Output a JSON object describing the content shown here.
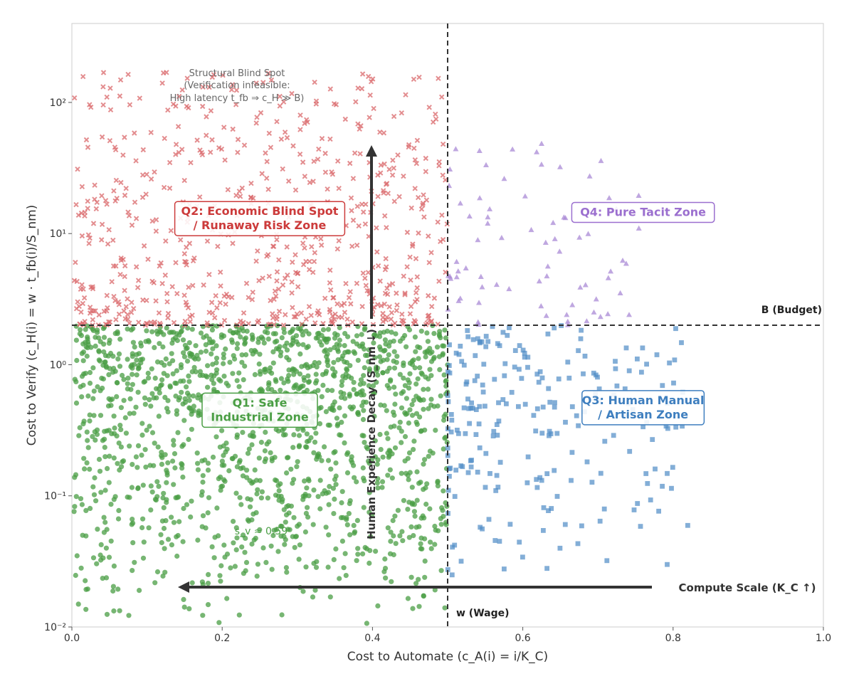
{
  "chart_data": {
    "type": "scatter",
    "title": "",
    "xlabel": "Cost to Automate (c_A(i) = i/K_C)",
    "ylabel": "Cost to Verify (c_H(i) = w · t_fb(i)/S_nm)",
    "xlim": [
      0.0,
      1.0
    ],
    "ylim": [
      0.01,
      400
    ],
    "yscale": "log",
    "grid": false,
    "x_ticks": [
      0.0,
      0.2,
      0.4,
      0.6,
      0.8,
      1.0
    ],
    "x_tick_labels": [
      "0.0",
      "0.2",
      "0.4",
      "0.6",
      "0.8",
      "1.0"
    ],
    "y_ticks": [
      0.01,
      0.1,
      1,
      10,
      100
    ],
    "y_tick_labels": [
      "10⁻²",
      "10⁻¹",
      "10⁰",
      "10¹",
      "10²"
    ],
    "threshold_wage": 0.5,
    "threshold_budget": 2.0,
    "threshold_wage_label": "w (Wage)",
    "threshold_budget_label": "B (Budget)",
    "series": [
      {
        "name": "Q1",
        "marker": "circle",
        "color": "#4a9e44",
        "count": 1500,
        "x_range": [
          0.0,
          0.5
        ],
        "y_range": [
          0.01,
          2.0
        ]
      },
      {
        "name": "Q2",
        "marker": "x",
        "color": "#d9676a",
        "count": 650,
        "x_range": [
          0.0,
          0.5
        ],
        "y_range": [
          2.0,
          170
        ]
      },
      {
        "name": "Q3",
        "marker": "square",
        "color": "#4f8cc6",
        "count": 230,
        "x_range": [
          0.5,
          0.82
        ],
        "y_range": [
          0.02,
          2.0
        ]
      },
      {
        "name": "Q4",
        "marker": "triangle",
        "color": "#a989d6",
        "count": 75,
        "x_range": [
          0.5,
          0.76
        ],
        "y_range": [
          2.0,
          50
        ]
      }
    ],
    "quadrant_labels": [
      {
        "id": "q1",
        "lines": [
          "Q1: Safe",
          "Industrial Zone"
        ],
        "color": "#4a9e44",
        "x": 0.25,
        "y": 0.45
      },
      {
        "id": "q2",
        "lines": [
          "Q2: Economic Blind Spot",
          "/ Runaway Risk Zone"
        ],
        "color": "#cc3b3b",
        "x": 0.25,
        "y": 13
      },
      {
        "id": "q3",
        "lines": [
          "Q3: Human Manual",
          "/ Artisan Zone"
        ],
        "color": "#3f7fbf",
        "x": 0.76,
        "y": 0.47
      },
      {
        "id": "q4",
        "lines": [
          "Q4: Pure Tacit Zone"
        ],
        "color": "#9b6fcf",
        "x": 0.76,
        "y": 14.5
      }
    ],
    "annotations": {
      "blind_spot_lines": [
        "Structural Blind Spot",
        "(Verification infeasible:",
        "High latency t_fb ⇒ c_H ≫ B)"
      ],
      "human_experience": "Human Experience Decay (S_nm ↓)",
      "compute_scale": "Compute Scale (K_C ↑)",
      "sv_label": "s_v ≈ 0.59"
    }
  }
}
